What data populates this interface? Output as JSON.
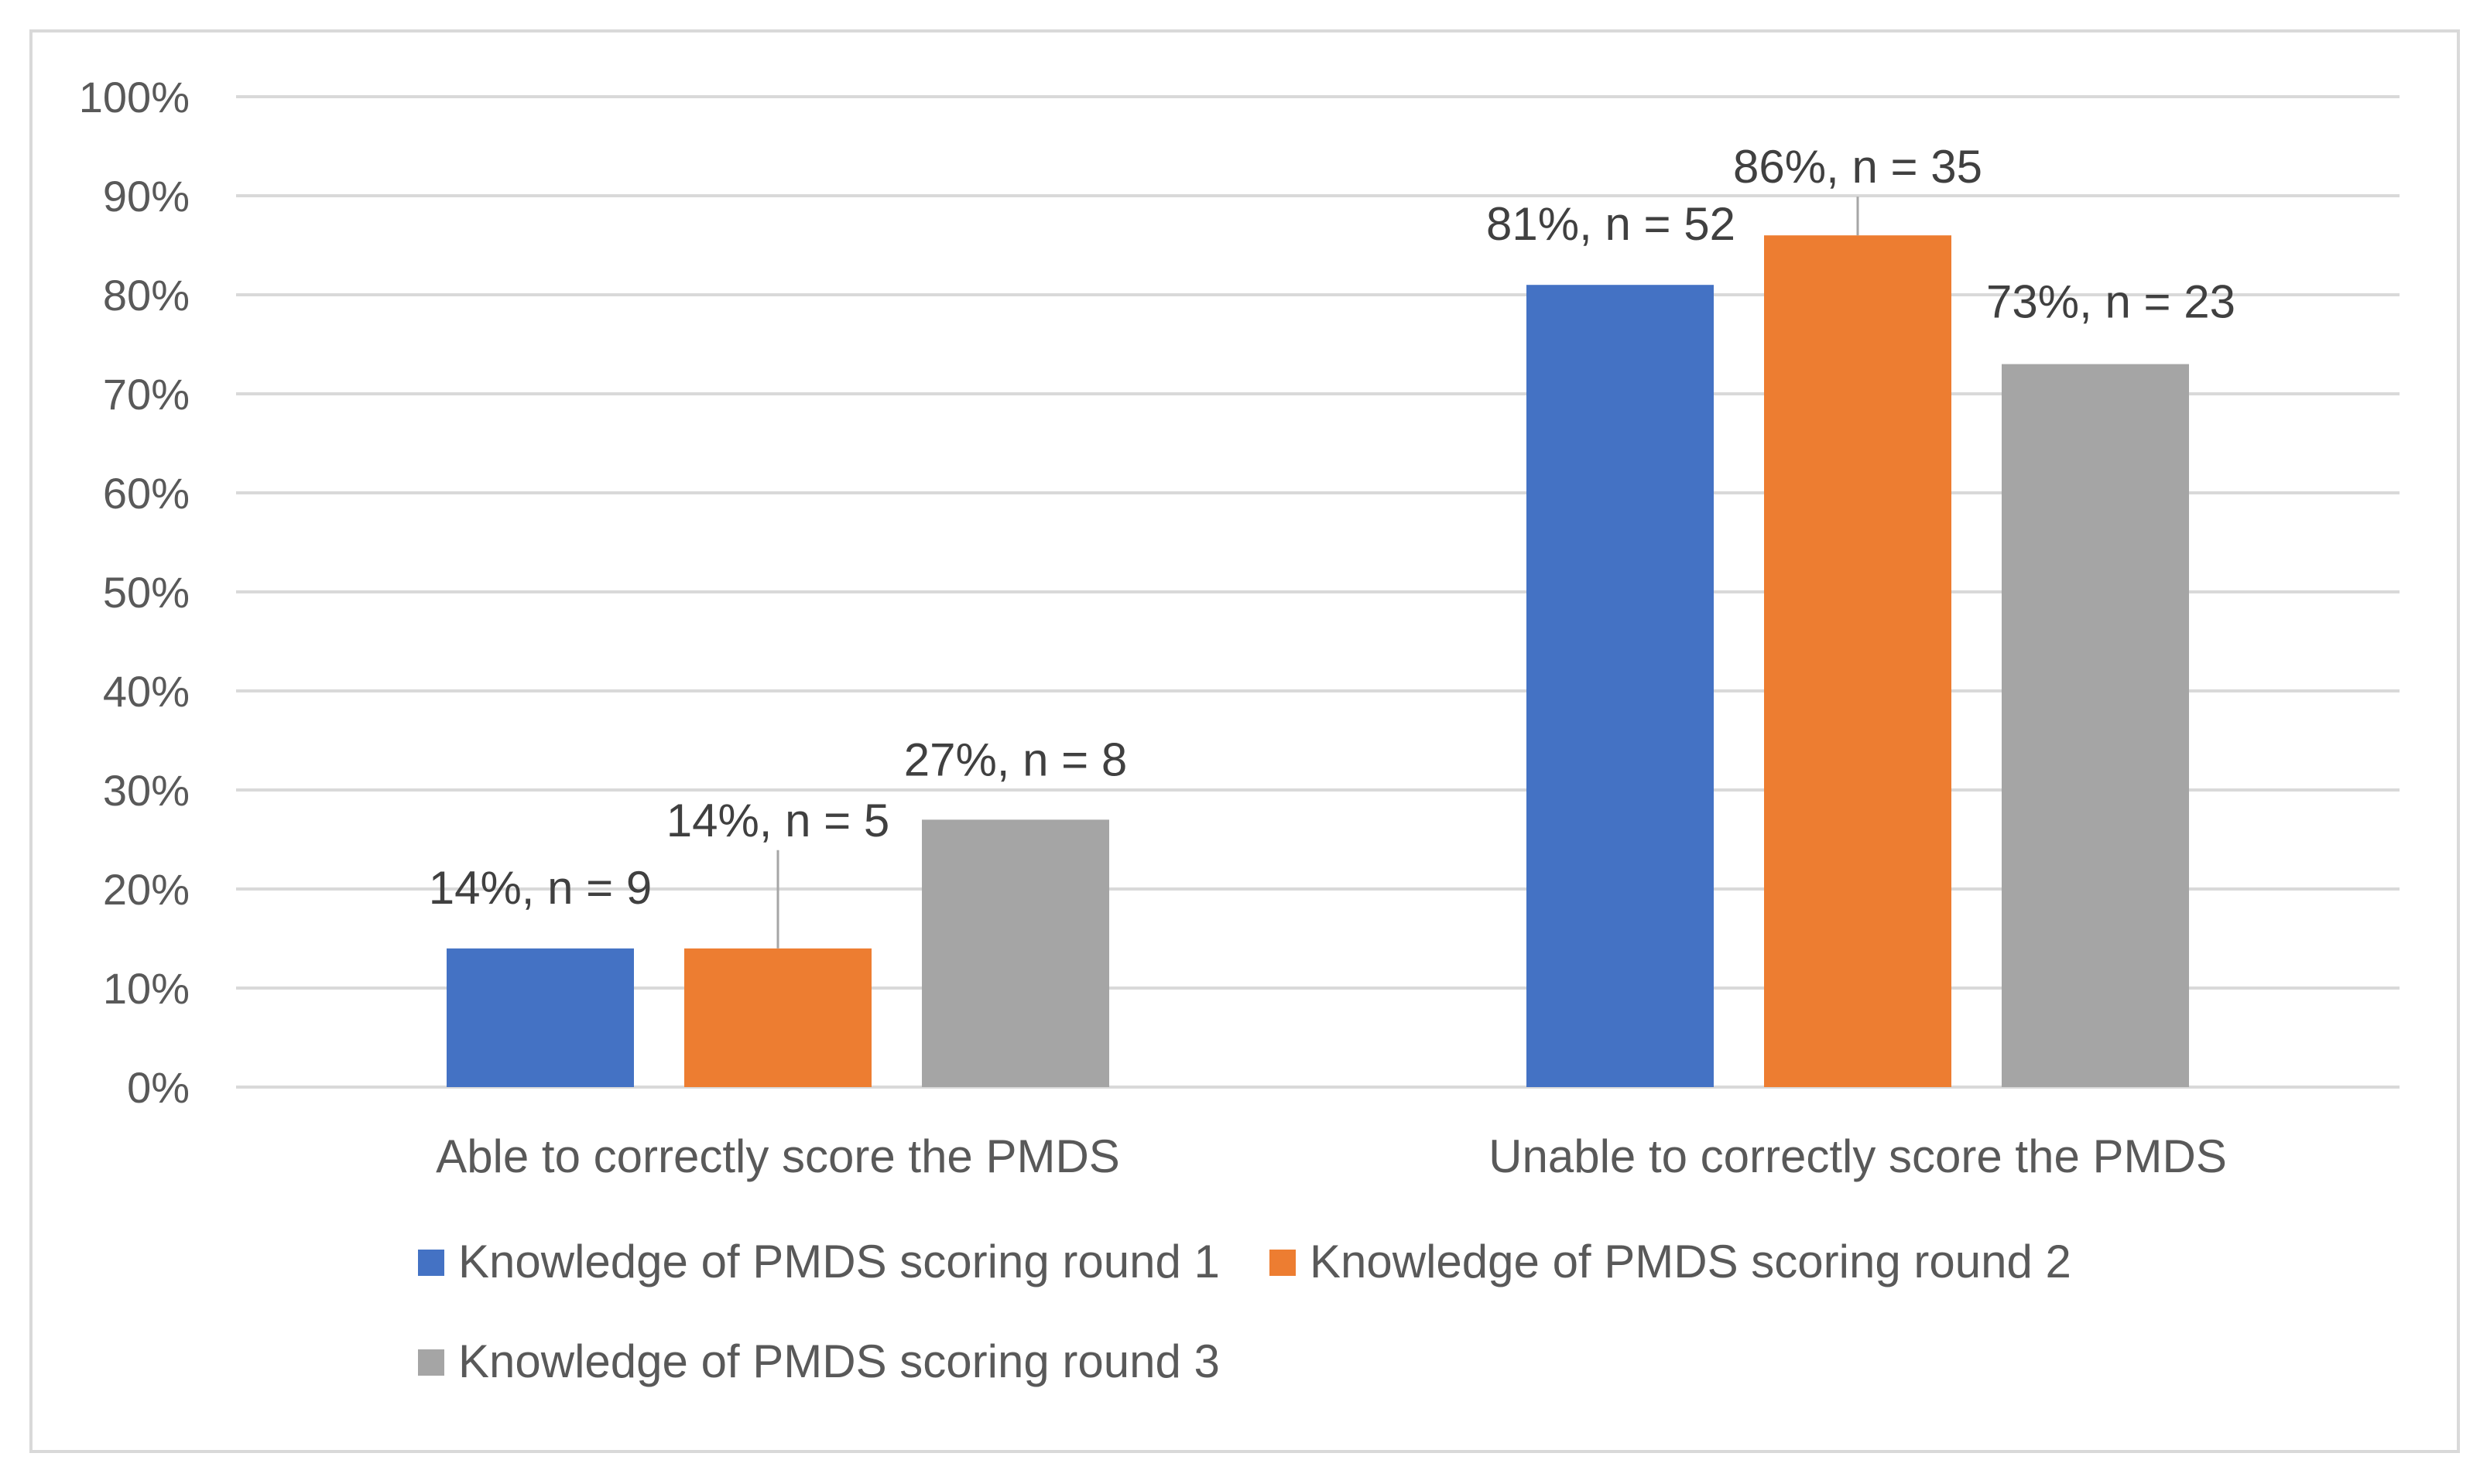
{
  "chart_data": {
    "type": "bar",
    "title": "",
    "xlabel": "",
    "ylabel": "",
    "ylim": [
      0,
      100
    ],
    "y_ticks": [
      "0%",
      "10%",
      "20%",
      "30%",
      "40%",
      "50%",
      "60%",
      "70%",
      "80%",
      "90%",
      "100%"
    ],
    "grid": true,
    "legend_position": "bottom",
    "categories": [
      "Able to correctly score the PMDS",
      "Unable to correctly score the PMDS"
    ],
    "series": [
      {
        "name": "Knowledge of PMDS scoring round 1",
        "color": "#4472C4",
        "values": [
          14,
          81
        ],
        "labels": [
          "14%, n = 9",
          "81%, n = 52"
        ]
      },
      {
        "name": "Knowledge of PMDS scoring round 2",
        "color": "#ED7D31",
        "values": [
          14,
          86
        ],
        "labels": [
          "14%, n = 5",
          "86%, n = 35"
        ]
      },
      {
        "name": "Knowledge of PMDS scoring round 3",
        "color": "#A5A5A5",
        "values": [
          27,
          73
        ],
        "labels": [
          "27%, n = 8",
          "73%, n = 23"
        ]
      }
    ]
  }
}
